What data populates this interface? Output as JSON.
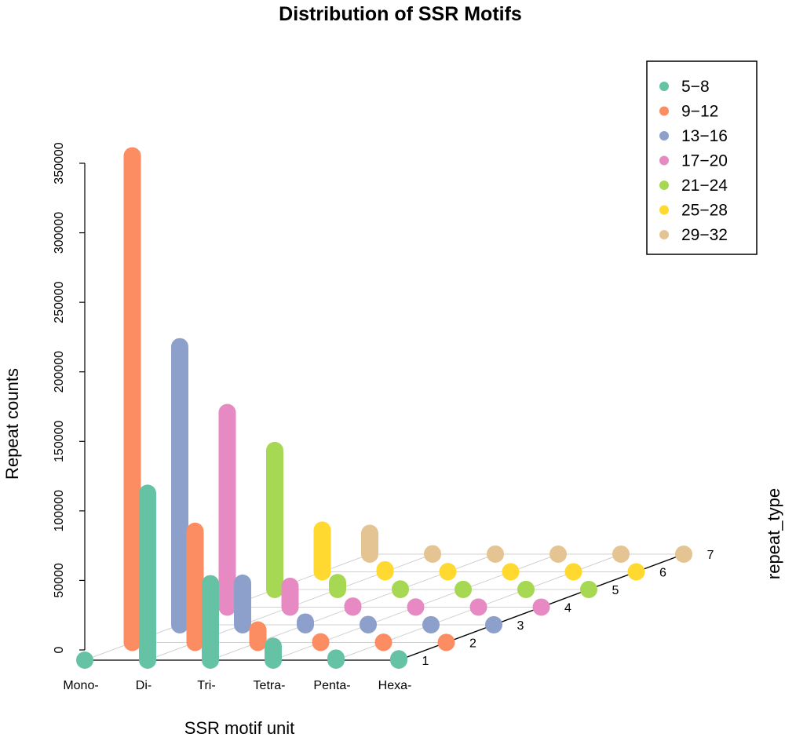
{
  "chart_data": {
    "type": "bar",
    "subtype": "3d-lollipop",
    "title": "Distribution of SSR Motifs",
    "xlabel": "SSR motif unit",
    "ylabel": "Repeat counts",
    "zlabel": "repeat_type",
    "categories": [
      "Mono-",
      "Di-",
      "Tri-",
      "Tetra-",
      "Penta-",
      "Hexa-"
    ],
    "depth_ticks": [
      "1",
      "2",
      "3",
      "4",
      "5",
      "6",
      "7"
    ],
    "yticks": [
      0,
      50000,
      100000,
      150000,
      200000,
      250000,
      300000,
      350000
    ],
    "ytick_labels": [
      "0",
      "50000",
      "100000",
      "150000",
      "200000",
      "250000",
      "300000",
      "350000"
    ],
    "ylim": [
      0,
      350000
    ],
    "legend_position": "top-right",
    "series": [
      {
        "name": "5−8",
        "color": "#66C2A5",
        "values": [
          0,
          120000,
          55000,
          10000,
          1500,
          1000
        ]
      },
      {
        "name": "9−12",
        "color": "#FC8D62",
        "values": [
          350000,
          80000,
          9000,
          500,
          200,
          100
        ]
      },
      {
        "name": "13−16",
        "color": "#8DA0CB",
        "values": [
          200000,
          30000,
          2000,
          300,
          100,
          50
        ]
      },
      {
        "name": "17−20",
        "color": "#E78AC3",
        "values": [
          140000,
          15000,
          800,
          150,
          50,
          30
        ]
      },
      {
        "name": "21−24",
        "color": "#A6D854",
        "values": [
          100000,
          5000,
          400,
          100,
          40,
          20
        ]
      },
      {
        "name": "25−28",
        "color": "#FFD92F",
        "values": [
          30000,
          1500,
          200,
          80,
          30,
          10
        ]
      },
      {
        "name": "29−32",
        "color": "#E5C494",
        "values": [
          15000,
          300,
          100,
          50,
          20,
          5
        ]
      }
    ]
  }
}
